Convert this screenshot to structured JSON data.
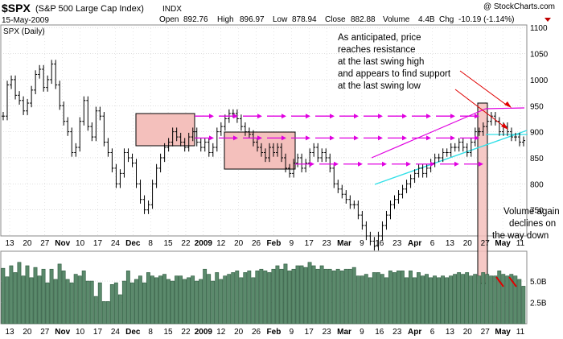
{
  "header": {
    "symbol": "$SPX",
    "name": "(S&P 500 Large Cap Index)",
    "exchange": "INDX",
    "copyright": "@ StockCharts.com",
    "date": "15-May-2009",
    "open_label": "Open",
    "open": "892.76",
    "high_label": "High",
    "high": "896.97",
    "low_label": "Low",
    "low": "878.94",
    "close_label": "Close",
    "close": "882.88",
    "volume_label": "Volume",
    "volume": "4.4B",
    "chg_label": "Chg",
    "chg": "-10.19 (-1.14%)"
  },
  "colors": {
    "price_bar": "#000000",
    "volume_fill": "#5b8a6c",
    "volume_stroke": "#2d5a3e",
    "magenta": "#e000e0",
    "cyan": "#33e0e8",
    "box_fill": "#f4c0bc",
    "red_annotation": "#e00000",
    "grid": "#cccccc"
  },
  "chart_data": {
    "type": "ohlc",
    "title": "$SPX (S&P 500 Large Cap Index) INDX",
    "price_panel_label": "SPX (Daily)",
    "x_tick_labels": [
      "13",
      "20",
      "27",
      "Nov",
      "10",
      "17",
      "24",
      "Dec",
      "8",
      "15",
      "22",
      "2009",
      "12",
      "20",
      "26",
      "Feb",
      "9",
      "17",
      "23",
      "Mar",
      "9",
      "16",
      "23",
      "Apr",
      "6",
      "13",
      "20",
      "27",
      "May",
      "11"
    ],
    "y_price_ticks": [
      750,
      800,
      850,
      900,
      950,
      1000,
      1050,
      1100
    ],
    "y_price_range": [
      700,
      1105
    ],
    "y_volume_ticks": [
      "2.5B",
      "5.0B"
    ],
    "y_volume_range": [
      0,
      8.5
    ],
    "series_closes": [
      930,
      990,
      1000,
      970,
      960,
      940,
      955,
      980,
      1010,
      1020,
      985,
      1000,
      1030,
      990,
      950,
      920,
      900,
      860,
      870,
      920,
      960,
      910,
      890,
      940,
      930,
      880,
      860,
      830,
      800,
      820,
      860,
      850,
      840,
      800,
      770,
      750,
      760,
      800,
      830,
      850,
      870,
      880,
      900,
      890,
      880,
      870,
      890,
      900,
      880,
      870,
      880,
      860,
      870,
      900,
      910,
      925,
      935,
      935,
      925,
      910,
      900,
      895,
      880,
      870,
      860,
      850,
      870,
      860,
      870,
      850,
      830,
      820,
      840,
      850,
      830,
      840,
      860,
      870,
      850,
      860,
      850,
      830,
      800,
      790,
      780,
      770,
      760,
      760,
      740,
      720,
      700,
      690,
      680,
      700,
      720,
      740,
      760,
      770,
      780,
      790,
      800,
      810,
      820,
      830,
      820,
      830,
      840,
      850,
      850,
      860,
      860,
      870,
      870,
      880,
      870,
      860,
      880,
      900,
      900,
      910,
      920,
      930,
      920,
      900,
      910,
      900,
      890,
      890,
      880,
      883
    ],
    "series_volumes": [
      6.5,
      5.5,
      6.8,
      6.0,
      7.2,
      5.6,
      6.8,
      5.4,
      6.6,
      5.6,
      6.4,
      4.8,
      6.4,
      5.2,
      7.0,
      6.2,
      5.2,
      4.8,
      5.8,
      5.6,
      6.2,
      5.0,
      5.0,
      3.2,
      4.8,
      2.6,
      2.6,
      4.6,
      4.8,
      3.4,
      5.0,
      6.2,
      4.8,
      5.2,
      5.6,
      4.8,
      6.0,
      5.6,
      5.4,
      5.6,
      5.8,
      5.2,
      5.0,
      5.6,
      5.6,
      5.2,
      5.4,
      5.6,
      5.0,
      5.2,
      6.4,
      5.8,
      5.0,
      6.0,
      5.2,
      5.6,
      5.8,
      6.0,
      6.2,
      5.4,
      6.0,
      6.2,
      5.4,
      6.2,
      6.4,
      6.2,
      6.0,
      6.4,
      6.8,
      6.4,
      7.0,
      6.2,
      6.4,
      6.8,
      6.8,
      6.6,
      7.2,
      6.8,
      6.4,
      6.8,
      6.4,
      6.4,
      6.2,
      6.4,
      6.2,
      6.4,
      6.4,
      6.6,
      5.6,
      5.6,
      5.8,
      5.4,
      6.0,
      6.0,
      5.8,
      5.4,
      6.2,
      6.0,
      6.2,
      6.2,
      5.4,
      6.2,
      5.4,
      6.0,
      5.6,
      5.8,
      5.4,
      5.6,
      5.4,
      5.6,
      5.4,
      5.6,
      5.8,
      6.0,
      5.8,
      6.0,
      5.6,
      5.8,
      5.6,
      6.0,
      5.8,
      5.6,
      5.6,
      6.2,
      5.8,
      5.6,
      5.8,
      5.6,
      5.2,
      4.4
    ],
    "levels": [
      {
        "name": "",
        "value": 930
      },
      {
        "name": "",
        "value": 888
      },
      {
        "name": "",
        "value": 838
      }
    ],
    "annotations": [
      {
        "text": "As anticipated, price reaches resistance at the last swing high and appears to find support at the last swing low"
      },
      {
        "text": "Volume again declines on the way down"
      }
    ]
  },
  "annotation_text": {
    "main": [
      "As anticipated, price",
      "reaches resistance",
      "at the last swing high",
      "and appears to find support",
      "at the last swing low"
    ],
    "volume": [
      "Volume again",
      "declines on",
      "the way down"
    ]
  },
  "volume_ticks": [
    {
      "value": 5.0,
      "label": "5.0B"
    },
    {
      "value": 2.5,
      "label": "2.5B"
    }
  ],
  "x_tick_positions": [
    {
      "label": "13",
      "bold": false
    },
    {
      "label": "20",
      "bold": false
    },
    {
      "label": "27",
      "bold": false
    },
    {
      "label": "Nov",
      "bold": true
    },
    {
      "label": "10",
      "bold": false
    },
    {
      "label": "17",
      "bold": false
    },
    {
      "label": "24",
      "bold": false
    },
    {
      "label": "Dec",
      "bold": true
    },
    {
      "label": "8",
      "bold": false
    },
    {
      "label": "15",
      "bold": false
    },
    {
      "label": "22",
      "bold": false
    },
    {
      "label": "2009",
      "bold": true
    },
    {
      "label": "12",
      "bold": false
    },
    {
      "label": "20",
      "bold": false
    },
    {
      "label": "26",
      "bold": false
    },
    {
      "label": "Feb",
      "bold": true
    },
    {
      "label": "9",
      "bold": false
    },
    {
      "label": "17",
      "bold": false
    },
    {
      "label": "23",
      "bold": false
    },
    {
      "label": "Mar",
      "bold": true
    },
    {
      "label": "9",
      "bold": false
    },
    {
      "label": "16",
      "bold": false
    },
    {
      "label": "23",
      "bold": false
    },
    {
      "label": "Apr",
      "bold": true
    },
    {
      "label": "6",
      "bold": false
    },
    {
      "label": "13",
      "bold": false
    },
    {
      "label": "20",
      "bold": false
    },
    {
      "label": "27",
      "bold": false
    },
    {
      "label": "May",
      "bold": true
    },
    {
      "label": "11",
      "bold": false
    }
  ]
}
